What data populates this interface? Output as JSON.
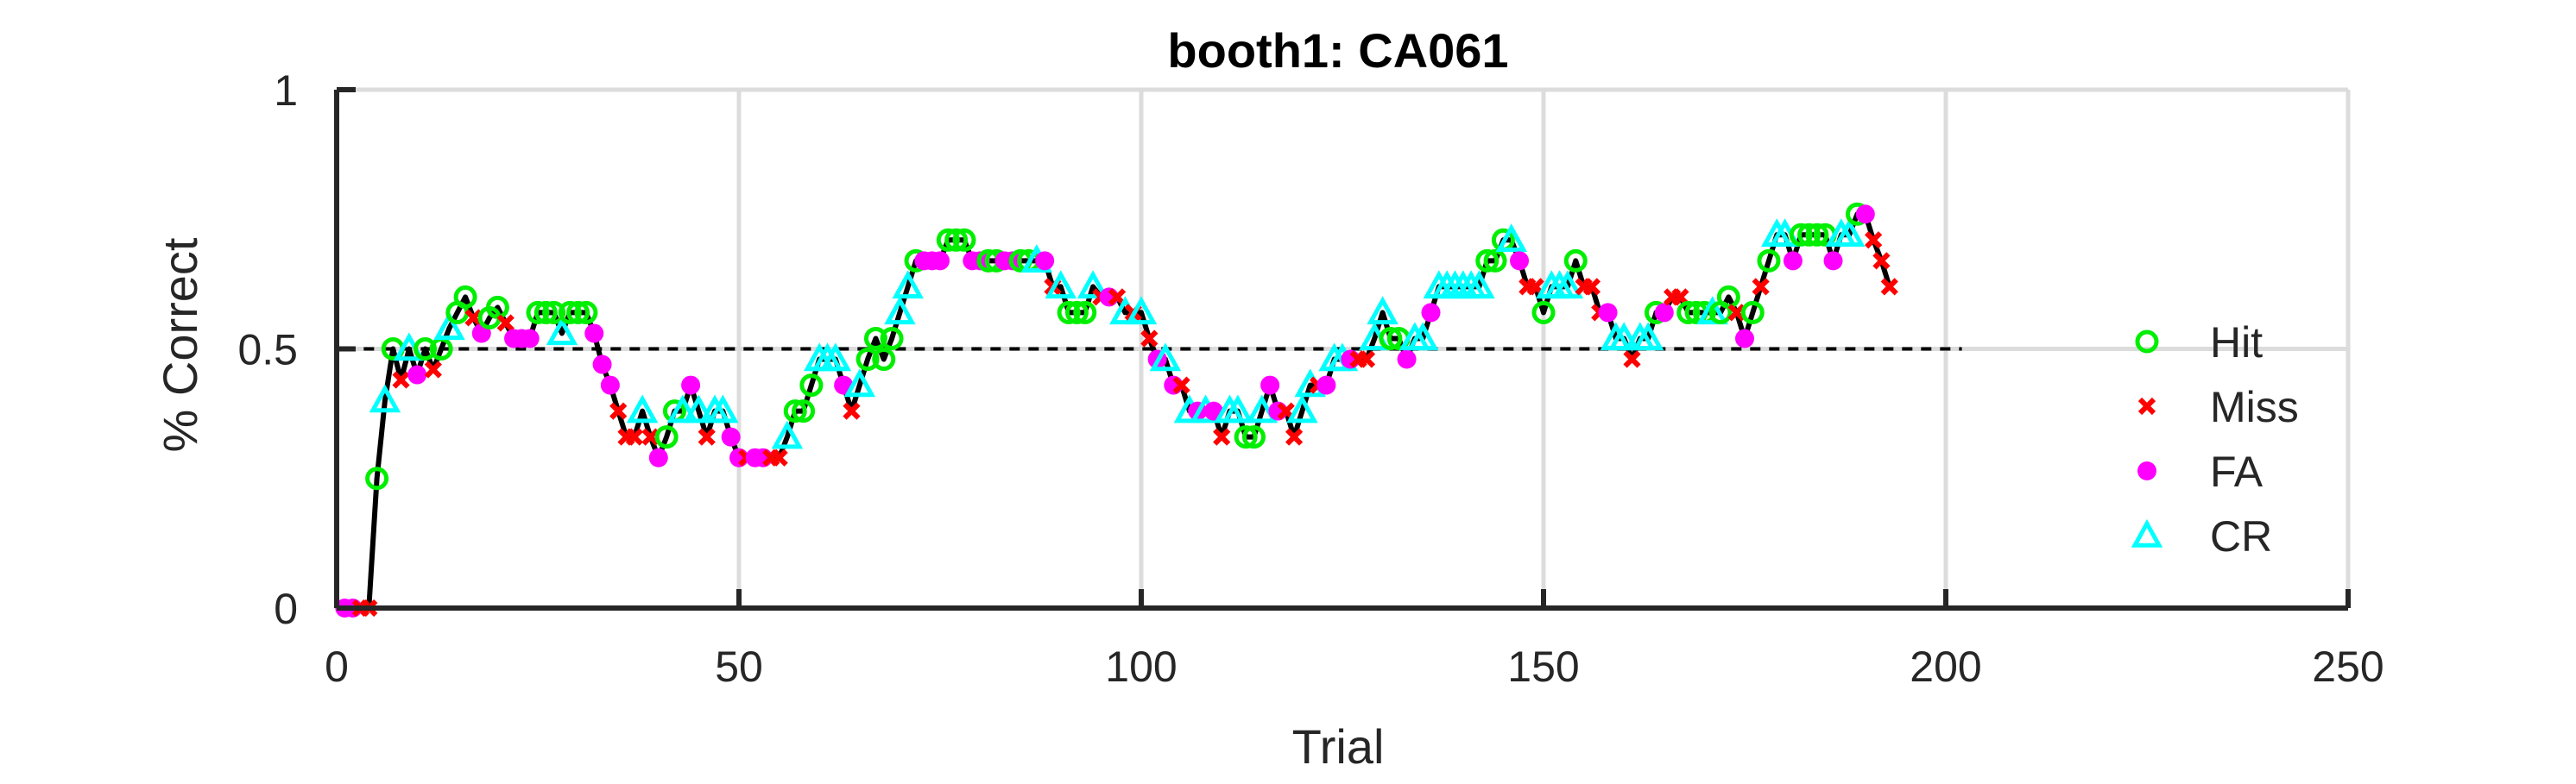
{
  "chart_data": {
    "type": "scatter",
    "title": "booth1: CA061",
    "xlabel": "Trial",
    "ylabel": "% Correct",
    "xlim": [
      0,
      250
    ],
    "ylim": [
      0,
      1
    ],
    "xticks": [
      0,
      50,
      100,
      150,
      200,
      250
    ],
    "yticks": [
      0,
      0.5,
      1
    ],
    "xtick_labels": [
      "0",
      "50",
      "100",
      "150",
      "200",
      "250"
    ],
    "ytick_labels": [
      "0",
      "0.5",
      "1"
    ],
    "grid": true,
    "legend_position": "right",
    "reference_line": {
      "y": 0.5,
      "x_range": [
        1,
        202
      ],
      "style": "dashed"
    },
    "colors": {
      "Hit": "#00ee00",
      "Miss": "#ff0000",
      "FA": "#ff00ff",
      "CR": "#00ffff",
      "line": "#000000"
    },
    "legend": [
      {
        "name": "Hit",
        "marker": "circle-open",
        "color": "#00ee00"
      },
      {
        "name": "Miss",
        "marker": "cross",
        "color": "#ff0000"
      },
      {
        "name": "FA",
        "marker": "circle-filled",
        "color": "#ff00ff"
      },
      {
        "name": "CR",
        "marker": "triangle-open",
        "color": "#00ffff"
      }
    ],
    "trials": [
      [
        1,
        0.0,
        "FA"
      ],
      [
        2,
        0.0,
        "FA"
      ],
      [
        3,
        0.0,
        "Miss"
      ],
      [
        4,
        0.0,
        "Miss"
      ],
      [
        5,
        0.25,
        "Hit"
      ],
      [
        6,
        0.4,
        "CR"
      ],
      [
        7,
        0.5,
        "Hit"
      ],
      [
        8,
        0.44,
        "Miss"
      ],
      [
        9,
        0.5,
        "CR"
      ],
      [
        10,
        0.45,
        "FA"
      ],
      [
        11,
        0.5,
        "Hit"
      ],
      [
        12,
        0.46,
        "Miss"
      ],
      [
        13,
        0.5,
        "Hit"
      ],
      [
        14,
        0.54,
        "CR"
      ],
      [
        15,
        0.57,
        "Hit"
      ],
      [
        16,
        0.6,
        "Hit"
      ],
      [
        17,
        0.56,
        "Miss"
      ],
      [
        18,
        0.53,
        "FA"
      ],
      [
        19,
        0.56,
        "Hit"
      ],
      [
        20,
        0.58,
        "Hit"
      ],
      [
        21,
        0.55,
        "Miss"
      ],
      [
        22,
        0.52,
        "FA"
      ],
      [
        23,
        0.52,
        "FA"
      ],
      [
        24,
        0.52,
        "FA"
      ],
      [
        25,
        0.57,
        "Hit"
      ],
      [
        26,
        0.57,
        "Hit"
      ],
      [
        27,
        0.57,
        "Hit"
      ],
      [
        28,
        0.53,
        "CR"
      ],
      [
        29,
        0.57,
        "Hit"
      ],
      [
        30,
        0.57,
        "Hit"
      ],
      [
        31,
        0.57,
        "Hit"
      ],
      [
        32,
        0.53,
        "FA"
      ],
      [
        33,
        0.47,
        "FA"
      ],
      [
        34,
        0.43,
        "FA"
      ],
      [
        35,
        0.38,
        "Miss"
      ],
      [
        36,
        0.33,
        "Miss"
      ],
      [
        37,
        0.33,
        "Miss"
      ],
      [
        38,
        0.38,
        "CR"
      ],
      [
        39,
        0.33,
        "Miss"
      ],
      [
        40,
        0.29,
        "FA"
      ],
      [
        41,
        0.33,
        "Hit"
      ],
      [
        42,
        0.38,
        "Hit"
      ],
      [
        43,
        0.38,
        "CR"
      ],
      [
        44,
        0.43,
        "FA"
      ],
      [
        45,
        0.38,
        "CR"
      ],
      [
        46,
        0.33,
        "Miss"
      ],
      [
        47,
        0.38,
        "CR"
      ],
      [
        48,
        0.38,
        "CR"
      ],
      [
        49,
        0.33,
        "FA"
      ],
      [
        50,
        0.29,
        "FA"
      ],
      [
        51,
        0.29,
        "Miss"
      ],
      [
        52,
        0.29,
        "FA"
      ],
      [
        53,
        0.29,
        "FA"
      ],
      [
        54,
        0.29,
        "Miss"
      ],
      [
        55,
        0.29,
        "Miss"
      ],
      [
        56,
        0.33,
        "CR"
      ],
      [
        57,
        0.38,
        "Hit"
      ],
      [
        58,
        0.38,
        "Hit"
      ],
      [
        59,
        0.43,
        "Hit"
      ],
      [
        60,
        0.48,
        "CR"
      ],
      [
        61,
        0.48,
        "CR"
      ],
      [
        62,
        0.48,
        "CR"
      ],
      [
        63,
        0.43,
        "FA"
      ],
      [
        64,
        0.38,
        "Miss"
      ],
      [
        65,
        0.43,
        "CR"
      ],
      [
        66,
        0.48,
        "Hit"
      ],
      [
        67,
        0.52,
        "Hit"
      ],
      [
        68,
        0.48,
        "Hit"
      ],
      [
        69,
        0.52,
        "Hit"
      ],
      [
        70,
        0.57,
        "CR"
      ],
      [
        71,
        0.62,
        "CR"
      ],
      [
        72,
        0.67,
        "Hit"
      ],
      [
        73,
        0.67,
        "FA"
      ],
      [
        74,
        0.67,
        "FA"
      ],
      [
        75,
        0.67,
        "FA"
      ],
      [
        76,
        0.71,
        "Hit"
      ],
      [
        77,
        0.71,
        "Hit"
      ],
      [
        78,
        0.71,
        "Hit"
      ],
      [
        79,
        0.67,
        "FA"
      ],
      [
        80,
        0.67,
        "FA"
      ],
      [
        81,
        0.67,
        "Hit"
      ],
      [
        82,
        0.67,
        "Hit"
      ],
      [
        83,
        0.67,
        "FA"
      ],
      [
        84,
        0.67,
        "FA"
      ],
      [
        85,
        0.67,
        "Hit"
      ],
      [
        86,
        0.67,
        "Hit"
      ],
      [
        87,
        0.67,
        "CR"
      ],
      [
        88,
        0.67,
        "FA"
      ],
      [
        89,
        0.62,
        "Miss"
      ],
      [
        90,
        0.62,
        "CR"
      ],
      [
        91,
        0.57,
        "Hit"
      ],
      [
        92,
        0.57,
        "Hit"
      ],
      [
        93,
        0.57,
        "Hit"
      ],
      [
        94,
        0.62,
        "CR"
      ],
      [
        95,
        0.6,
        "Miss"
      ],
      [
        96,
        0.6,
        "FA"
      ],
      [
        97,
        0.6,
        "Miss"
      ],
      [
        98,
        0.57,
        "CR"
      ],
      [
        99,
        0.57,
        "Miss"
      ],
      [
        100,
        0.57,
        "CR"
      ],
      [
        101,
        0.52,
        "Miss"
      ],
      [
        102,
        0.48,
        "FA"
      ],
      [
        103,
        0.48,
        "CR"
      ],
      [
        104,
        0.43,
        "FA"
      ],
      [
        105,
        0.43,
        "Miss"
      ],
      [
        106,
        0.38,
        "CR"
      ],
      [
        107,
        0.38,
        "FA"
      ],
      [
        108,
        0.38,
        "CR"
      ],
      [
        109,
        0.38,
        "FA"
      ],
      [
        110,
        0.33,
        "Miss"
      ],
      [
        111,
        0.38,
        "CR"
      ],
      [
        112,
        0.38,
        "CR"
      ],
      [
        113,
        0.33,
        "Hit"
      ],
      [
        114,
        0.33,
        "Hit"
      ],
      [
        115,
        0.38,
        "CR"
      ],
      [
        116,
        0.43,
        "FA"
      ],
      [
        117,
        0.38,
        "FA"
      ],
      [
        118,
        0.38,
        "Miss"
      ],
      [
        119,
        0.33,
        "Miss"
      ],
      [
        120,
        0.38,
        "CR"
      ],
      [
        121,
        0.43,
        "CR"
      ],
      [
        122,
        0.43,
        "Miss"
      ],
      [
        123,
        0.43,
        "FA"
      ],
      [
        124,
        0.48,
        "CR"
      ],
      [
        125,
        0.48,
        "CR"
      ],
      [
        126,
        0.48,
        "FA"
      ],
      [
        127,
        0.48,
        "Miss"
      ],
      [
        128,
        0.48,
        "Miss"
      ],
      [
        129,
        0.52,
        "CR"
      ],
      [
        130,
        0.57,
        "CR"
      ],
      [
        131,
        0.52,
        "Hit"
      ],
      [
        132,
        0.52,
        "Hit"
      ],
      [
        133,
        0.48,
        "FA"
      ],
      [
        134,
        0.52,
        "CR"
      ],
      [
        135,
        0.52,
        "CR"
      ],
      [
        136,
        0.57,
        "FA"
      ],
      [
        137,
        0.62,
        "CR"
      ],
      [
        138,
        0.62,
        "CR"
      ],
      [
        139,
        0.62,
        "CR"
      ],
      [
        140,
        0.62,
        "CR"
      ],
      [
        141,
        0.62,
        "CR"
      ],
      [
        142,
        0.62,
        "CR"
      ],
      [
        143,
        0.67,
        "Hit"
      ],
      [
        144,
        0.67,
        "Hit"
      ],
      [
        145,
        0.71,
        "Hit"
      ],
      [
        146,
        0.71,
        "CR"
      ],
      [
        147,
        0.67,
        "FA"
      ],
      [
        148,
        0.62,
        "Miss"
      ],
      [
        149,
        0.62,
        "Miss"
      ],
      [
        150,
        0.57,
        "Hit"
      ],
      [
        151,
        0.62,
        "CR"
      ],
      [
        152,
        0.62,
        "CR"
      ],
      [
        153,
        0.62,
        "CR"
      ],
      [
        154,
        0.67,
        "Hit"
      ],
      [
        155,
        0.62,
        "Miss"
      ],
      [
        156,
        0.62,
        "Miss"
      ],
      [
        157,
        0.57,
        "Miss"
      ],
      [
        158,
        0.57,
        "FA"
      ],
      [
        159,
        0.52,
        "CR"
      ],
      [
        160,
        0.52,
        "CR"
      ],
      [
        161,
        0.48,
        "Miss"
      ],
      [
        162,
        0.52,
        "CR"
      ],
      [
        163,
        0.52,
        "CR"
      ],
      [
        164,
        0.57,
        "Hit"
      ],
      [
        165,
        0.57,
        "FA"
      ],
      [
        166,
        0.6,
        "Miss"
      ],
      [
        167,
        0.6,
        "Miss"
      ],
      [
        168,
        0.57,
        "Hit"
      ],
      [
        169,
        0.57,
        "Hit"
      ],
      [
        170,
        0.57,
        "Hit"
      ],
      [
        171,
        0.57,
        "CR"
      ],
      [
        172,
        0.57,
        "Hit"
      ],
      [
        173,
        0.6,
        "Hit"
      ],
      [
        174,
        0.57,
        "Miss"
      ],
      [
        175,
        0.52,
        "FA"
      ],
      [
        176,
        0.57,
        "Hit"
      ],
      [
        177,
        0.62,
        "Miss"
      ],
      [
        178,
        0.67,
        "Hit"
      ],
      [
        179,
        0.72,
        "CR"
      ],
      [
        180,
        0.72,
        "CR"
      ],
      [
        181,
        0.67,
        "FA"
      ],
      [
        182,
        0.72,
        "Hit"
      ],
      [
        183,
        0.72,
        "Hit"
      ],
      [
        184,
        0.72,
        "Hit"
      ],
      [
        185,
        0.72,
        "Hit"
      ],
      [
        186,
        0.67,
        "FA"
      ],
      [
        187,
        0.72,
        "CR"
      ],
      [
        188,
        0.72,
        "CR"
      ],
      [
        189,
        0.76,
        "Hit"
      ],
      [
        190,
        0.76,
        "FA"
      ],
      [
        191,
        0.71,
        "Miss"
      ],
      [
        192,
        0.67,
        "Miss"
      ],
      [
        193,
        0.62,
        "Miss"
      ]
    ]
  }
}
